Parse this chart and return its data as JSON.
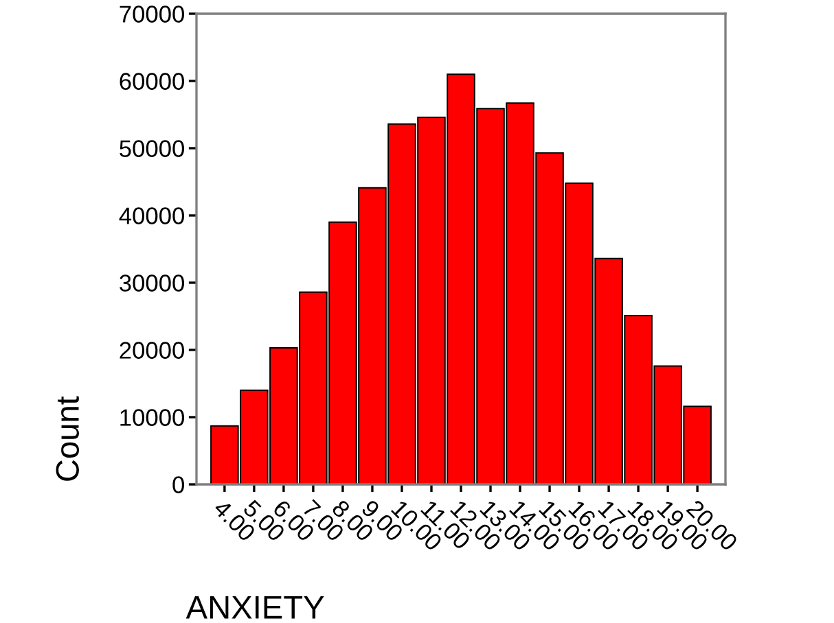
{
  "chart_data": {
    "type": "bar",
    "xlabel": "ANXIETY",
    "ylabel": "Count",
    "categories": [
      "4.00",
      "5.00",
      "6.00",
      "7.00",
      "8.00",
      "9.00",
      "10.00",
      "11.00",
      "12.00",
      "13.00",
      "14.00",
      "15.00",
      "16.00",
      "17.00",
      "18.00",
      "19.00",
      "20.00"
    ],
    "values": [
      8700,
      14000,
      20300,
      28600,
      39000,
      44100,
      53600,
      54600,
      61000,
      55900,
      56700,
      49300,
      44800,
      33600,
      25100,
      17600,
      11600
    ],
    "color": "#ff0000",
    "ylim": [
      0,
      70000
    ],
    "yticks": [
      0,
      10000,
      20000,
      30000,
      40000,
      50000,
      60000,
      70000
    ]
  }
}
